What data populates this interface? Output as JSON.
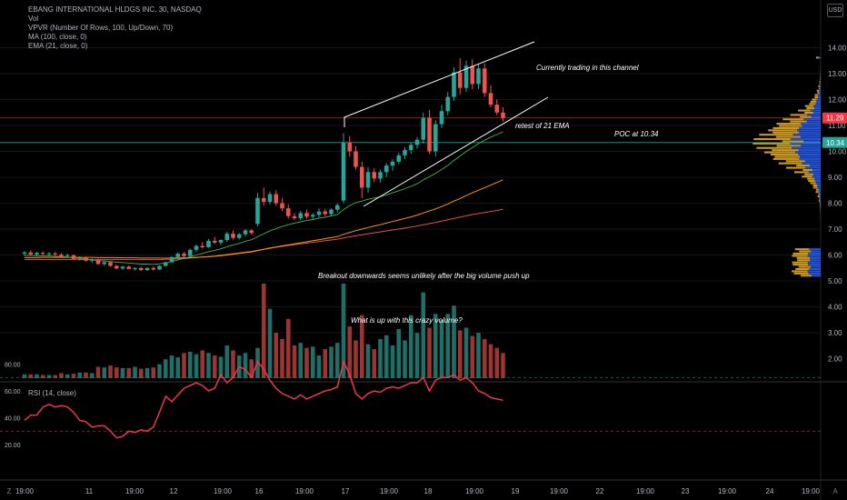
{
  "header": {
    "symbol_line": "EBANG INTERNATIONAL HLDGS INC, 30, NASDAQ",
    "vol": "Vol",
    "vpvr": "VPVR (Number Of Rows, 100, Up/Down, 70)",
    "ma": "MA (100, close, 0)",
    "ema": "EMA (21, close, 0)"
  },
  "currency_button": "USD",
  "rsi_label": "RSI (14, close)",
  "annotations": {
    "channel": "Currently trading in this channel",
    "retest": "retest of 21 EMA",
    "poc": "POC at 10.34",
    "breakout": "Breakout downwards seems unlikely after the big volume push up",
    "volume": "What is up with this crazy volume?"
  },
  "colors": {
    "up": "#26a69a",
    "down": "#ef5350",
    "up_vol": "#1d6f67",
    "down_vol": "#9b3533",
    "ema": "#4caf50",
    "ma": "#ff9800",
    "ma_long": "#e0533e",
    "rsi": "#f23645",
    "poc_line": "#26a69a",
    "price_line": "#f23645",
    "vpvr_up": "#2962ff",
    "vpvr_down": "#f0b429",
    "trend": "#ffffff"
  },
  "chart_data": {
    "type": "candlestick",
    "price_axis": {
      "ticks": [
        "14.00",
        "13.00",
        "12.00",
        "11.00",
        "10.00",
        "9.00",
        "8.00",
        "7.00",
        "6.00",
        "5.00",
        "4.00",
        "3.00",
        "2.00"
      ]
    },
    "rsi_axis": {
      "ticks": [
        "80.00",
        "60.00",
        "40.00",
        "20.00"
      ]
    },
    "time_axis": {
      "ticks": [
        "19:00",
        "11",
        "19:00",
        "12",
        "19:00",
        "16",
        "19:00",
        "17",
        "19:00",
        "18",
        "19:00",
        "19",
        "19:00",
        "22",
        "19:00",
        "23",
        "19:00",
        "24",
        "19:00"
      ]
    },
    "last_price": "11.29",
    "poc_price": "10.34",
    "tz_label": "Z",
    "log_label": "A",
    "candles": [
      [
        6.05,
        6.15,
        5.95,
        6.1
      ],
      [
        6.1,
        6.18,
        5.98,
        6.02
      ],
      [
        6.02,
        6.12,
        5.95,
        6.08
      ],
      [
        6.08,
        6.14,
        6.0,
        6.04
      ],
      [
        6.04,
        6.12,
        5.96,
        6.06
      ],
      [
        6.06,
        6.12,
        5.98,
        6.02
      ],
      [
        6.02,
        6.08,
        5.92,
        5.96
      ],
      [
        5.96,
        6.05,
        5.88,
        5.99
      ],
      [
        5.99,
        6.02,
        5.82,
        5.85
      ],
      [
        5.85,
        5.95,
        5.78,
        5.9
      ],
      [
        5.9,
        5.94,
        5.75,
        5.78
      ],
      [
        5.78,
        5.88,
        5.7,
        5.82
      ],
      [
        5.82,
        5.86,
        5.62,
        5.65
      ],
      [
        5.65,
        5.76,
        5.58,
        5.72
      ],
      [
        5.72,
        5.76,
        5.55,
        5.58
      ],
      [
        5.58,
        5.62,
        5.45,
        5.48
      ],
      [
        5.48,
        5.58,
        5.42,
        5.55
      ],
      [
        5.55,
        5.6,
        5.44,
        5.46
      ],
      [
        5.46,
        5.52,
        5.4,
        5.5
      ],
      [
        5.5,
        5.54,
        5.38,
        5.42
      ],
      [
        5.42,
        5.52,
        5.38,
        5.5
      ],
      [
        5.5,
        5.56,
        5.4,
        5.44
      ],
      [
        5.44,
        5.6,
        5.42,
        5.58
      ],
      [
        5.58,
        5.75,
        5.55,
        5.72
      ],
      [
        5.72,
        5.95,
        5.68,
        5.92
      ],
      [
        5.92,
        6.1,
        5.85,
        6.05
      ],
      [
        6.05,
        6.12,
        5.9,
        5.96
      ],
      [
        5.96,
        6.25,
        5.92,
        6.2
      ],
      [
        6.2,
        6.4,
        6.12,
        6.35
      ],
      [
        6.35,
        6.5,
        6.25,
        6.3
      ],
      [
        6.3,
        6.62,
        6.28,
        6.55
      ],
      [
        6.55,
        6.7,
        6.42,
        6.48
      ],
      [
        6.48,
        6.6,
        6.38,
        6.58
      ],
      [
        6.58,
        6.9,
        6.5,
        6.82
      ],
      [
        6.82,
        6.95,
        6.6,
        6.66
      ],
      [
        6.66,
        6.85,
        6.6,
        6.8
      ],
      [
        6.8,
        7.0,
        6.7,
        6.95
      ],
      [
        6.95,
        7.0,
        6.78,
        6.85
      ],
      [
        7.2,
        8.4,
        7.1,
        8.2
      ],
      [
        8.2,
        8.6,
        7.9,
        8.05
      ],
      [
        8.05,
        8.45,
        7.95,
        8.35
      ],
      [
        8.35,
        8.5,
        7.9,
        8.0
      ],
      [
        8.0,
        8.2,
        7.7,
        7.8
      ],
      [
        7.8,
        7.95,
        7.4,
        7.5
      ],
      [
        7.5,
        7.62,
        7.35,
        7.42
      ],
      [
        7.42,
        7.7,
        7.35,
        7.62
      ],
      [
        7.62,
        7.75,
        7.4,
        7.48
      ],
      [
        7.48,
        7.62,
        7.35,
        7.55
      ],
      [
        7.55,
        7.8,
        7.45,
        7.68
      ],
      [
        7.68,
        7.78,
        7.5,
        7.58
      ],
      [
        7.58,
        7.8,
        7.5,
        7.75
      ],
      [
        7.75,
        8.0,
        7.65,
        7.92
      ],
      [
        8.1,
        10.7,
        8.0,
        10.35
      ],
      [
        10.35,
        10.6,
        9.8,
        10.0
      ],
      [
        10.0,
        10.2,
        9.3,
        9.4
      ],
      [
        9.4,
        9.6,
        8.2,
        8.6
      ],
      [
        8.6,
        9.4,
        8.4,
        9.2
      ],
      [
        9.2,
        9.35,
        8.8,
        8.95
      ],
      [
        8.95,
        9.3,
        8.8,
        9.2
      ],
      [
        9.2,
        9.55,
        9.0,
        9.45
      ],
      [
        9.45,
        9.7,
        9.25,
        9.6
      ],
      [
        9.6,
        9.95,
        9.5,
        9.85
      ],
      [
        9.85,
        10.15,
        9.7,
        10.05
      ],
      [
        10.05,
        10.35,
        9.9,
        10.25
      ],
      [
        10.25,
        10.55,
        10.1,
        10.45
      ],
      [
        10.45,
        11.5,
        10.3,
        11.3
      ],
      [
        11.3,
        11.6,
        9.9,
        10.0
      ],
      [
        10.0,
        11.2,
        9.8,
        11.05
      ],
      [
        11.05,
        11.8,
        10.9,
        11.55
      ],
      [
        11.55,
        12.3,
        11.4,
        12.1
      ],
      [
        12.1,
        13.25,
        11.95,
        13.05
      ],
      [
        13.05,
        13.6,
        12.2,
        12.45
      ],
      [
        12.45,
        13.5,
        12.3,
        13.3
      ],
      [
        13.3,
        13.55,
        12.4,
        12.6
      ],
      [
        12.6,
        13.35,
        12.4,
        13.2
      ],
      [
        13.2,
        13.4,
        12.1,
        12.25
      ],
      [
        12.25,
        12.55,
        11.7,
        11.8
      ],
      [
        11.8,
        12.0,
        11.4,
        11.5
      ],
      [
        11.5,
        11.7,
        11.15,
        11.29
      ]
    ],
    "volume": [
      6,
      6,
      6,
      5,
      5,
      5,
      8,
      6,
      7,
      9,
      9,
      8,
      18,
      17,
      20,
      17,
      16,
      16,
      18,
      15,
      16,
      17,
      22,
      30,
      36,
      33,
      40,
      42,
      38,
      44,
      40,
      36,
      34,
      52,
      44,
      36,
      40,
      30,
      48,
      150,
      110,
      72,
      62,
      94,
      52,
      56,
      48,
      50,
      36,
      46,
      50,
      56,
      150,
      82,
      60,
      100,
      54,
      46,
      62,
      68,
      52,
      78,
      60,
      100,
      72,
      136,
      80,
      102,
      92,
      102,
      115,
      76,
      80,
      67,
      72,
      62,
      54,
      48,
      40
    ],
    "ema21": [
      5.98,
      5.98,
      5.97,
      5.97,
      5.96,
      5.95,
      5.94,
      5.92,
      5.89,
      5.87,
      5.84,
      5.82,
      5.78,
      5.77,
      5.75,
      5.72,
      5.71,
      5.69,
      5.67,
      5.65,
      5.65,
      5.64,
      5.66,
      5.69,
      5.75,
      5.81,
      5.87,
      5.93,
      6.0,
      6.06,
      6.13,
      6.18,
      6.24,
      6.32,
      6.39,
      6.45,
      6.53,
      6.59,
      6.7,
      6.82,
      6.93,
      7.02,
      7.1,
      7.17,
      7.23,
      7.28,
      7.33,
      7.37,
      7.42,
      7.46,
      7.51,
      7.57,
      7.75,
      7.91,
      8.02,
      8.08,
      8.15,
      8.2,
      8.25,
      8.32,
      8.4,
      8.48,
      8.56,
      8.65,
      8.75,
      8.9,
      9.02,
      9.15,
      9.3,
      9.46,
      9.65,
      9.82,
      10.0,
      10.14,
      10.3,
      10.43,
      10.55,
      10.65,
      10.75
    ],
    "ma100": [
      5.9,
      5.9,
      5.9,
      5.91,
      5.91,
      5.91,
      5.91,
      5.91,
      5.91,
      5.91,
      5.91,
      5.91,
      5.9,
      5.9,
      5.9,
      5.9,
      5.89,
      5.89,
      5.89,
      5.88,
      5.88,
      5.88,
      5.88,
      5.88,
      5.88,
      5.89,
      5.89,
      5.9,
      5.91,
      5.92,
      5.93,
      5.95,
      5.97,
      6.0,
      6.03,
      6.06,
      6.09,
      6.12,
      6.17,
      6.22,
      6.27,
      6.31,
      6.35,
      6.39,
      6.43,
      6.47,
      6.51,
      6.55,
      6.59,
      6.63,
      6.67,
      6.71,
      6.8,
      6.87,
      6.94,
      7.0,
      7.06,
      7.12,
      7.17,
      7.23,
      7.29,
      7.35,
      7.41,
      7.47,
      7.54,
      7.62,
      7.7,
      7.78,
      7.87,
      7.97,
      8.08,
      8.18,
      8.29,
      8.4,
      8.5,
      8.6,
      8.7,
      8.8,
      8.9
    ],
    "ma_long": [
      5.82,
      5.82,
      5.82,
      5.82,
      5.82,
      5.82,
      5.82,
      5.82,
      5.82,
      5.82,
      5.82,
      5.82,
      5.82,
      5.82,
      5.82,
      5.82,
      5.82,
      5.82,
      5.82,
      5.82,
      5.82,
      5.82,
      5.82,
      5.83,
      5.84,
      5.85,
      5.86,
      5.88,
      5.9,
      5.92,
      5.94,
      5.96,
      5.99,
      6.02,
      6.05,
      6.08,
      6.11,
      6.14,
      6.18,
      6.22,
      6.26,
      6.3,
      6.33,
      6.37,
      6.4,
      6.43,
      6.46,
      6.49,
      6.52,
      6.55,
      6.58,
      6.61,
      6.66,
      6.7,
      6.74,
      6.78,
      6.82,
      6.86,
      6.89,
      6.93,
      6.97,
      7.0,
      7.04,
      7.08,
      7.12,
      7.17,
      7.21,
      7.26,
      7.31,
      7.36,
      7.41,
      7.46,
      7.51,
      7.56,
      7.6,
      7.64,
      7.68,
      7.72,
      7.76
    ],
    "rsi": [
      38,
      42,
      42,
      48,
      50,
      48,
      49,
      48,
      44,
      38,
      37,
      33,
      34,
      34,
      30,
      25,
      26,
      30,
      29,
      31,
      30,
      33,
      44,
      56,
      52,
      57,
      62,
      64,
      66,
      64,
      60,
      62,
      72,
      66,
      70,
      78,
      76,
      70,
      82,
      76,
      68,
      62,
      58,
      56,
      54,
      57,
      54,
      56,
      58,
      60,
      61,
      63,
      82,
      72,
      58,
      54,
      58,
      60,
      59,
      62,
      63,
      62,
      64,
      66,
      66,
      70,
      60,
      68,
      70,
      70,
      72,
      68,
      70,
      66,
      60,
      58,
      55,
      54,
      53
    ]
  }
}
